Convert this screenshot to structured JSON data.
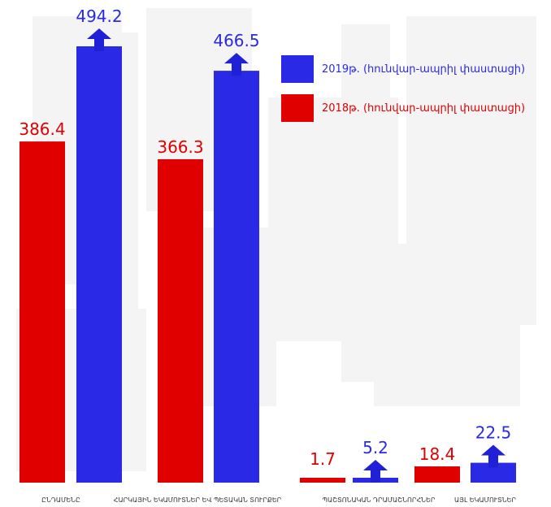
{
  "chart_data": {
    "type": "bar",
    "categories": [
      "ԸՆԴԱՄԵՆԸ",
      "ՀԱՐԿԱՅԻՆ ԵԿԱՄՈՒՏՆԵՐ ԵՎ ՊԵՏԱԿԱՆ ՏՈՒՐՔԵՐ",
      "ՊԱՇՏՈՆԱԿԱՆ ԴՐԱՄԱՇՆՈՐՀՆԵՐ",
      "ԱՅԼ ԵԿԱՄՈՒՏՆԵՐ"
    ],
    "series": [
      {
        "name": "2018թ. (հունվար-ապրիլ փաստացի)",
        "color": "#e00000",
        "values": [
          386.4,
          366.3,
          1.7,
          18.4
        ],
        "labels": [
          "386.4",
          "366.3",
          "1.7",
          "18.4"
        ]
      },
      {
        "name": "2019թ. (հունվար-ապրիլ փաստացի)",
        "color": "#2a2ae6",
        "values": [
          494.2,
          466.5,
          5.2,
          22.5
        ],
        "labels": [
          "494.2",
          "466.5",
          "5.2",
          "22.5"
        ]
      }
    ],
    "legend_order": [
      1,
      0
    ],
    "increase_arrows": true,
    "grid": false,
    "legend_position": "top-right"
  }
}
